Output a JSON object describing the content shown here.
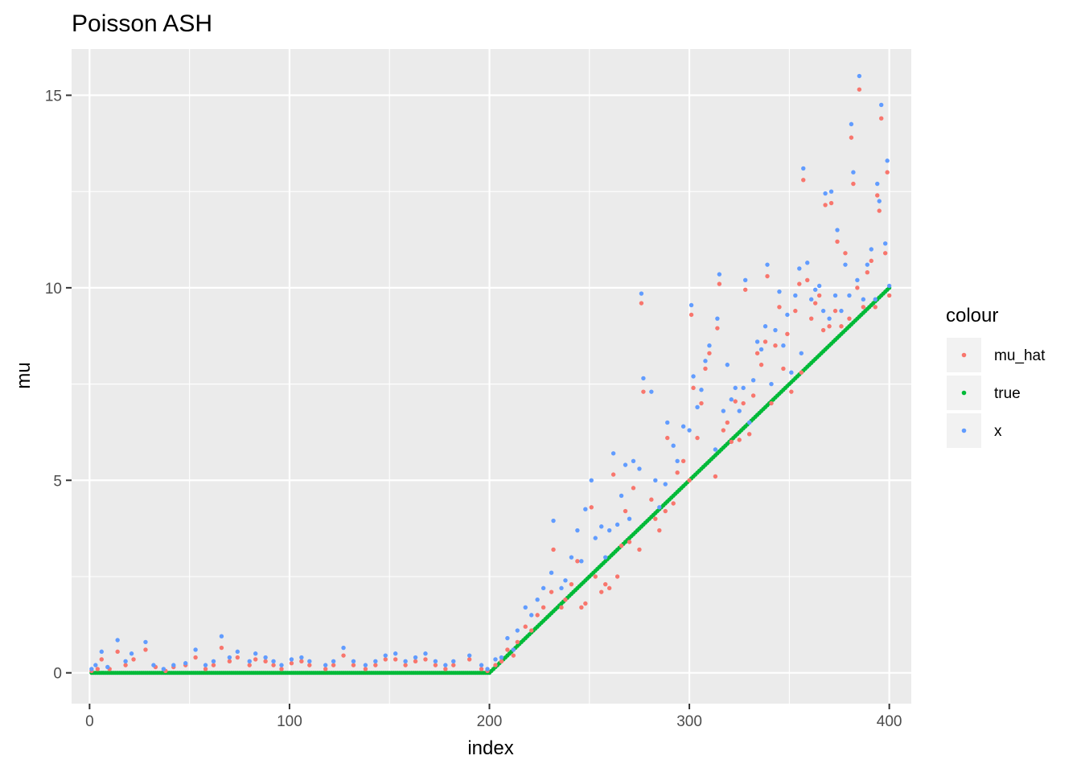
{
  "chart_data": {
    "type": "scatter",
    "title": "Poisson ASH",
    "xlabel": "index",
    "ylabel": "mu",
    "xlim": [
      -9,
      411
    ],
    "ylim": [
      -0.8,
      16.2
    ],
    "x_ticks": [
      0,
      100,
      200,
      300,
      400
    ],
    "y_ticks": [
      0,
      5,
      10,
      15
    ],
    "x_tick_labels": [
      "0",
      "100",
      "200",
      "300",
      "400"
    ],
    "y_tick_labels": [
      "0",
      "5",
      "10",
      "15"
    ],
    "grid": true,
    "legend": {
      "title": "colour",
      "position": "right",
      "entries": [
        "mu_hat",
        "true",
        "x"
      ]
    },
    "colors": {
      "mu_hat": "#F8766D",
      "true": "#00BA38",
      "x": "#619CFF",
      "panel": "#EBEBEB",
      "grid": "#FFFFFF"
    },
    "series": [
      {
        "name": "true",
        "description_of_values": "0 for index 1-200, then linear rising to 10 at index 400",
        "points": [
          [
            1,
            0
          ],
          [
            200,
            0
          ],
          [
            400,
            10
          ]
        ]
      },
      {
        "name": "x",
        "points": [
          [
            1,
            0.1
          ],
          [
            3,
            0.2
          ],
          [
            6,
            0.55
          ],
          [
            9,
            0.15
          ],
          [
            14,
            0.85
          ],
          [
            18,
            0.3
          ],
          [
            21,
            0.5
          ],
          [
            28,
            0.8
          ],
          [
            32,
            0.2
          ],
          [
            37,
            0.1
          ],
          [
            42,
            0.2
          ],
          [
            48,
            0.25
          ],
          [
            53,
            0.6
          ],
          [
            58,
            0.2
          ],
          [
            62,
            0.3
          ],
          [
            66,
            0.95
          ],
          [
            70,
            0.4
          ],
          [
            74,
            0.55
          ],
          [
            80,
            0.3
          ],
          [
            83,
            0.5
          ],
          [
            88,
            0.4
          ],
          [
            92,
            0.3
          ],
          [
            96,
            0.2
          ],
          [
            101,
            0.35
          ],
          [
            106,
            0.4
          ],
          [
            110,
            0.3
          ],
          [
            118,
            0.2
          ],
          [
            122,
            0.3
          ],
          [
            127,
            0.65
          ],
          [
            132,
            0.3
          ],
          [
            138,
            0.2
          ],
          [
            143,
            0.3
          ],
          [
            148,
            0.45
          ],
          [
            153,
            0.5
          ],
          [
            158,
            0.3
          ],
          [
            163,
            0.4
          ],
          [
            168,
            0.5
          ],
          [
            173,
            0.3
          ],
          [
            178,
            0.2
          ],
          [
            182,
            0.3
          ],
          [
            190,
            0.45
          ],
          [
            196,
            0.2
          ],
          [
            199,
            0.1
          ],
          [
            203,
            0.35
          ],
          [
            206,
            0.4
          ],
          [
            209,
            0.9
          ],
          [
            212,
            0.6
          ],
          [
            214,
            1.1
          ],
          [
            218,
            1.7
          ],
          [
            221,
            1.5
          ],
          [
            224,
            1.9
          ],
          [
            227,
            2.2
          ],
          [
            231,
            2.6
          ],
          [
            232,
            3.95
          ],
          [
            236,
            2.2
          ],
          [
            238,
            2.4
          ],
          [
            241,
            3.0
          ],
          [
            244,
            3.7
          ],
          [
            246,
            2.9
          ],
          [
            248,
            4.25
          ],
          [
            251,
            5.0
          ],
          [
            253,
            3.5
          ],
          [
            256,
            3.8
          ],
          [
            258,
            3.0
          ],
          [
            260,
            3.7
          ],
          [
            262,
            5.7
          ],
          [
            264,
            3.85
          ],
          [
            266,
            4.6
          ],
          [
            268,
            5.4
          ],
          [
            270,
            4.0
          ],
          [
            272,
            5.5
          ],
          [
            275,
            5.3
          ],
          [
            276,
            9.85
          ],
          [
            277,
            7.65
          ],
          [
            281,
            7.3
          ],
          [
            283,
            5.0
          ],
          [
            285,
            4.3
          ],
          [
            288,
            4.9
          ],
          [
            289,
            6.5
          ],
          [
            292,
            5.9
          ],
          [
            294,
            5.5
          ],
          [
            297,
            6.4
          ],
          [
            300,
            6.3
          ],
          [
            301,
            9.55
          ],
          [
            302,
            7.7
          ],
          [
            304,
            6.9
          ],
          [
            306,
            7.35
          ],
          [
            308,
            8.1
          ],
          [
            310,
            8.5
          ],
          [
            313,
            5.8
          ],
          [
            314,
            9.2
          ],
          [
            315,
            10.35
          ],
          [
            317,
            6.8
          ],
          [
            319,
            8.0
          ],
          [
            321,
            7.1
          ],
          [
            323,
            7.4
          ],
          [
            325,
            6.8
          ],
          [
            327,
            7.4
          ],
          [
            328,
            10.2
          ],
          [
            330,
            6.5
          ],
          [
            332,
            7.6
          ],
          [
            334,
            8.6
          ],
          [
            336,
            8.4
          ],
          [
            338,
            9.0
          ],
          [
            339,
            10.6
          ],
          [
            341,
            7.5
          ],
          [
            343,
            8.9
          ],
          [
            345,
            9.9
          ],
          [
            347,
            8.5
          ],
          [
            349,
            9.3
          ],
          [
            351,
            7.8
          ],
          [
            353,
            9.8
          ],
          [
            355,
            10.5
          ],
          [
            356,
            8.3
          ],
          [
            357,
            13.1
          ],
          [
            359,
            10.65
          ],
          [
            361,
            9.7
          ],
          [
            363,
            9.95
          ],
          [
            365,
            10.05
          ],
          [
            367,
            9.4
          ],
          [
            368,
            12.45
          ],
          [
            370,
            9.2
          ],
          [
            371,
            12.5
          ],
          [
            373,
            9.8
          ],
          [
            374,
            11.5
          ],
          [
            376,
            9.4
          ],
          [
            378,
            10.6
          ],
          [
            380,
            9.8
          ],
          [
            381,
            14.25
          ],
          [
            382,
            13.0
          ],
          [
            384,
            10.2
          ],
          [
            385,
            15.5
          ],
          [
            387,
            9.7
          ],
          [
            389,
            10.6
          ],
          [
            391,
            11.0
          ],
          [
            393,
            9.7
          ],
          [
            394,
            12.7
          ],
          [
            395,
            12.25
          ],
          [
            396,
            14.75
          ],
          [
            398,
            11.15
          ],
          [
            399,
            13.3
          ],
          [
            400,
            10.05
          ]
        ]
      },
      {
        "name": "mu_hat",
        "points": [
          [
            1,
            0.05
          ],
          [
            4,
            0.1
          ],
          [
            6,
            0.35
          ],
          [
            10,
            0.1
          ],
          [
            14,
            0.55
          ],
          [
            18,
            0.2
          ],
          [
            22,
            0.35
          ],
          [
            28,
            0.6
          ],
          [
            33,
            0.15
          ],
          [
            38,
            0.05
          ],
          [
            42,
            0.15
          ],
          [
            48,
            0.2
          ],
          [
            53,
            0.4
          ],
          [
            58,
            0.1
          ],
          [
            62,
            0.2
          ],
          [
            66,
            0.65
          ],
          [
            70,
            0.3
          ],
          [
            74,
            0.4
          ],
          [
            80,
            0.2
          ],
          [
            83,
            0.35
          ],
          [
            88,
            0.3
          ],
          [
            92,
            0.2
          ],
          [
            96,
            0.1
          ],
          [
            101,
            0.25
          ],
          [
            106,
            0.3
          ],
          [
            110,
            0.2
          ],
          [
            118,
            0.1
          ],
          [
            122,
            0.2
          ],
          [
            127,
            0.45
          ],
          [
            132,
            0.2
          ],
          [
            138,
            0.1
          ],
          [
            143,
            0.2
          ],
          [
            148,
            0.35
          ],
          [
            153,
            0.35
          ],
          [
            158,
            0.2
          ],
          [
            163,
            0.3
          ],
          [
            168,
            0.35
          ],
          [
            173,
            0.2
          ],
          [
            178,
            0.1
          ],
          [
            182,
            0.2
          ],
          [
            190,
            0.35
          ],
          [
            196,
            0.1
          ],
          [
            199,
            0.05
          ],
          [
            203,
            0.2
          ],
          [
            206,
            0.3
          ],
          [
            209,
            0.6
          ],
          [
            212,
            0.45
          ],
          [
            214,
            0.8
          ],
          [
            218,
            1.2
          ],
          [
            221,
            1.1
          ],
          [
            224,
            1.5
          ],
          [
            227,
            1.7
          ],
          [
            231,
            2.1
          ],
          [
            232,
            3.2
          ],
          [
            236,
            1.7
          ],
          [
            238,
            1.9
          ],
          [
            241,
            2.3
          ],
          [
            244,
            2.9
          ],
          [
            246,
            1.7
          ],
          [
            248,
            1.8
          ],
          [
            251,
            4.3
          ],
          [
            253,
            2.5
          ],
          [
            256,
            2.1
          ],
          [
            258,
            2.3
          ],
          [
            260,
            2.2
          ],
          [
            262,
            5.15
          ],
          [
            264,
            2.5
          ],
          [
            266,
            3.3
          ],
          [
            268,
            4.2
          ],
          [
            270,
            3.4
          ],
          [
            272,
            4.8
          ],
          [
            275,
            3.2
          ],
          [
            276,
            9.6
          ],
          [
            277,
            7.3
          ],
          [
            281,
            4.5
          ],
          [
            283,
            4.0
          ],
          [
            285,
            3.7
          ],
          [
            288,
            4.2
          ],
          [
            289,
            6.1
          ],
          [
            292,
            4.4
          ],
          [
            294,
            5.2
          ],
          [
            297,
            5.5
          ],
          [
            300,
            5.0
          ],
          [
            301,
            9.3
          ],
          [
            302,
            7.4
          ],
          [
            304,
            6.1
          ],
          [
            306,
            7.0
          ],
          [
            308,
            7.9
          ],
          [
            310,
            8.3
          ],
          [
            313,
            5.1
          ],
          [
            314,
            8.95
          ],
          [
            315,
            10.1
          ],
          [
            317,
            6.3
          ],
          [
            319,
            6.5
          ],
          [
            321,
            6.0
          ],
          [
            323,
            7.05
          ],
          [
            325,
            6.05
          ],
          [
            327,
            7.0
          ],
          [
            328,
            9.95
          ],
          [
            330,
            6.2
          ],
          [
            332,
            7.2
          ],
          [
            334,
            8.3
          ],
          [
            336,
            8.0
          ],
          [
            338,
            8.6
          ],
          [
            339,
            10.3
          ],
          [
            341,
            7.0
          ],
          [
            343,
            8.5
          ],
          [
            345,
            9.5
          ],
          [
            347,
            7.9
          ],
          [
            349,
            8.8
          ],
          [
            351,
            7.3
          ],
          [
            353,
            9.4
          ],
          [
            355,
            10.1
          ],
          [
            356,
            7.8
          ],
          [
            357,
            12.8
          ],
          [
            359,
            10.2
          ],
          [
            361,
            9.2
          ],
          [
            363,
            9.6
          ],
          [
            365,
            9.8
          ],
          [
            367,
            8.9
          ],
          [
            368,
            12.15
          ],
          [
            370,
            9.0
          ],
          [
            371,
            12.2
          ],
          [
            373,
            9.4
          ],
          [
            374,
            11.2
          ],
          [
            376,
            9.0
          ],
          [
            378,
            10.9
          ],
          [
            380,
            9.2
          ],
          [
            381,
            13.9
          ],
          [
            382,
            12.7
          ],
          [
            384,
            10.0
          ],
          [
            385,
            15.15
          ],
          [
            387,
            9.5
          ],
          [
            389,
            10.4
          ],
          [
            391,
            10.7
          ],
          [
            393,
            9.5
          ],
          [
            394,
            12.4
          ],
          [
            395,
            12.0
          ],
          [
            396,
            14.4
          ],
          [
            398,
            10.9
          ],
          [
            399,
            13.0
          ],
          [
            400,
            9.8
          ]
        ]
      }
    ]
  }
}
